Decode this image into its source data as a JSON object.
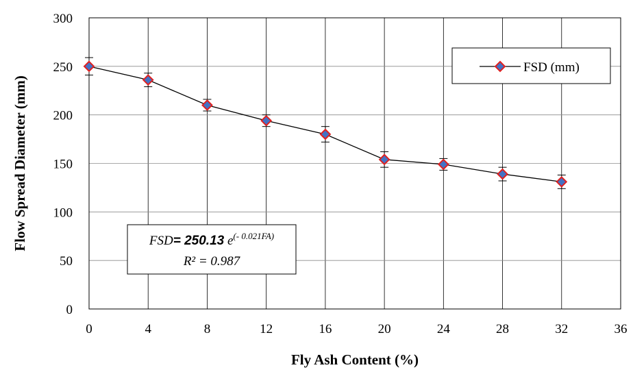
{
  "chart_data": {
    "type": "line",
    "xlabel": "Fly Ash Content (%)",
    "ylabel": "Flow Spread Diameter (mm)",
    "xlim": [
      0,
      36
    ],
    "ylim": [
      0,
      300
    ],
    "x_ticks": [
      0,
      4,
      8,
      12,
      16,
      20,
      24,
      28,
      32,
      36
    ],
    "y_ticks": [
      0,
      50,
      100,
      150,
      200,
      250,
      300
    ],
    "grid": true,
    "legend_position": "top-right",
    "series": [
      {
        "name": "FSD (mm)",
        "x": [
          0,
          4,
          8,
          12,
          16,
          20,
          24,
          28,
          32
        ],
        "y": [
          250,
          236,
          210,
          194,
          180,
          154,
          149,
          139,
          131
        ],
        "error": [
          9,
          7,
          6,
          6,
          8,
          8,
          6,
          7,
          7
        ],
        "marker_fill": "#4472C4",
        "marker_edge": "#E02020",
        "line_color": "#000000"
      }
    ],
    "annotation": {
      "fsd_label": "FSD",
      "equals": "= ",
      "coefficient": "250.13",
      "base": " e",
      "exponent": "(- 0.021FA)",
      "r2": "R² = 0.987"
    }
  }
}
